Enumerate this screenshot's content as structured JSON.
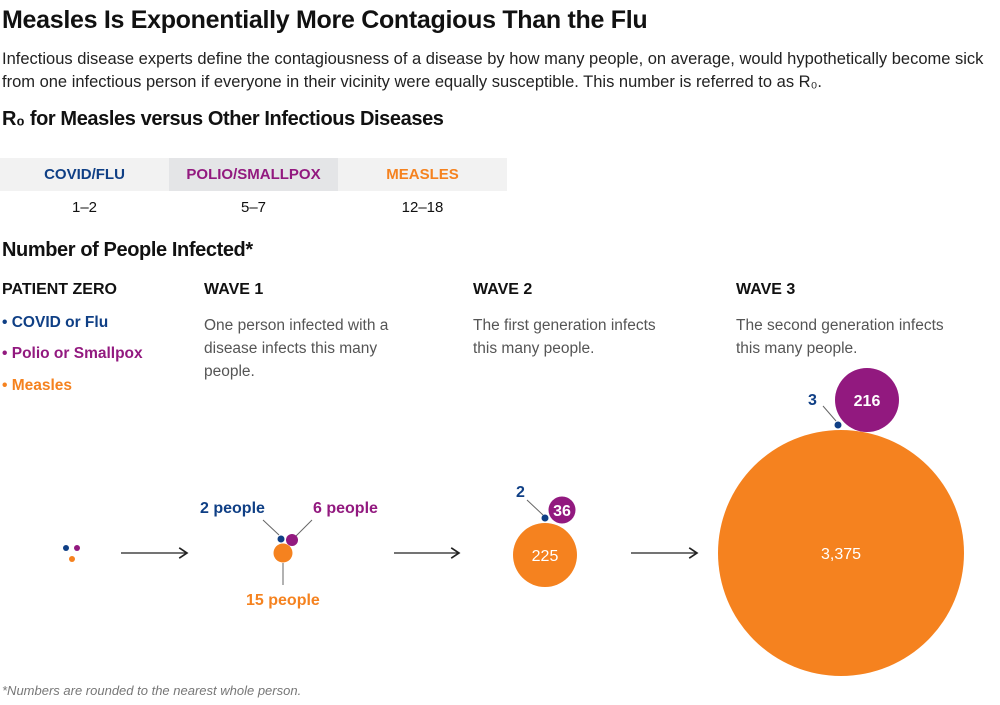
{
  "title": "Measles Is Exponentially More Contagious Than the Flu",
  "description": "Infectious disease experts define the contagiousness of a disease by how many people, on average, would hypothetically become sick from one infectious person if everyone in their vicinity were equally susceptible. This number is referred to as R₀.",
  "r0_heading": "R₀ for Measles versus Other Infectious Diseases",
  "r0_table": {
    "headers": [
      "COVID/FLU",
      "POLIO/SMALLPOX",
      "MEASLES"
    ],
    "values": [
      "1–2",
      "5–7",
      "12–18"
    ]
  },
  "infected_heading": "Number of People Infected*",
  "columns": {
    "patient_zero": "PATIENT ZERO",
    "wave1": {
      "label": "WAVE 1",
      "text": "One person infected with a disease infects this many people."
    },
    "wave2": {
      "label": "WAVE 2",
      "text": "The first generation infects this many people."
    },
    "wave3": {
      "label": "WAVE 3",
      "text": "The second generation infects this many people."
    }
  },
  "legend": [
    "• COVID or Flu",
    "• Polio or Smallpox",
    "• Measles"
  ],
  "colors": {
    "covid": "#0f3f85",
    "polio": "#92197f",
    "measles": "#f5821f"
  },
  "waves": {
    "wave1": {
      "covid": "2 people",
      "polio": "6 people",
      "measles": "15 people"
    },
    "wave2": {
      "covid": "2",
      "polio": "36",
      "measles": "225"
    },
    "wave3": {
      "covid": "3",
      "polio": "216",
      "measles": "3,375"
    }
  },
  "footnote": "*Numbers are rounded to the nearest whole person."
}
